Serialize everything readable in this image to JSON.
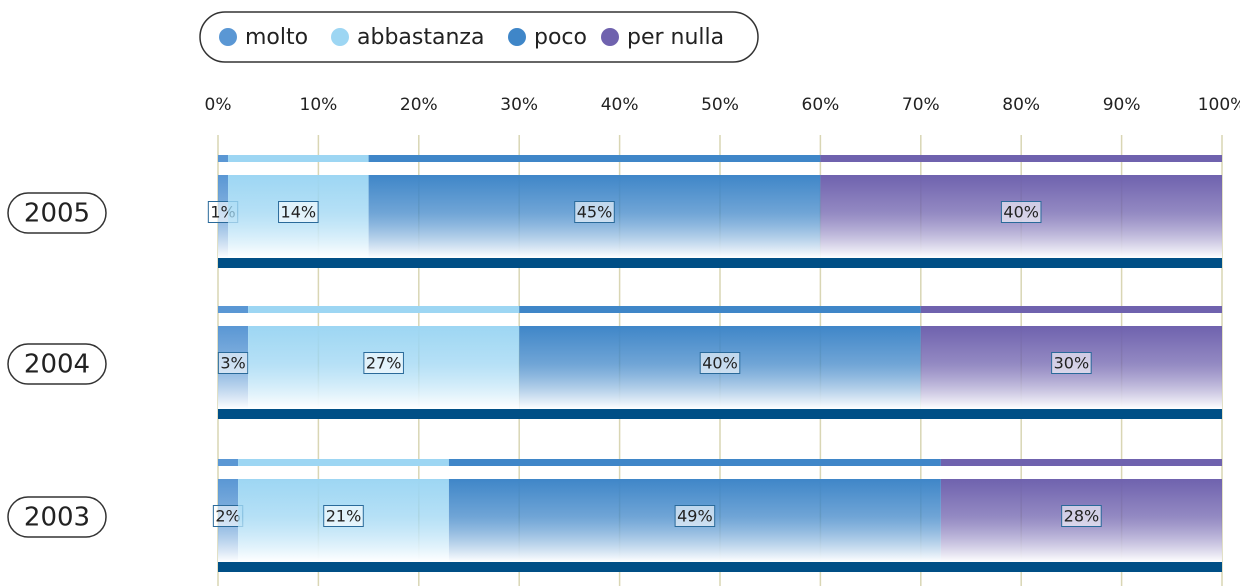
{
  "chart_data": {
    "type": "stacked-bar-horizontal",
    "categories": [
      "2005",
      "2004",
      "2003"
    ],
    "series": [
      {
        "name": "molto",
        "color": "#5a97d4",
        "values": [
          1,
          3,
          2
        ],
        "value_labels": [
          "1%",
          "3%",
          "2%"
        ]
      },
      {
        "name": "abbastanza",
        "color": "#9dd6f3",
        "values": [
          14,
          27,
          21
        ],
        "value_labels": [
          "14%",
          "27%",
          "21%"
        ]
      },
      {
        "name": "poco",
        "color": "#3f86c8",
        "values": [
          45,
          40,
          49
        ],
        "value_labels": [
          "45%",
          "40%",
          "49%"
        ]
      },
      {
        "name": "per nulla",
        "color": "#6f62ae",
        "values": [
          40,
          30,
          28
        ],
        "value_labels": [
          "40%",
          "30%",
          "28%"
        ]
      }
    ],
    "xlim": [
      0,
      100
    ],
    "xticks": [
      {
        "value": 0,
        "label": "0%"
      },
      {
        "value": 10,
        "label": "10%"
      },
      {
        "value": 20,
        "label": "20%"
      },
      {
        "value": 30,
        "label": "30%"
      },
      {
        "value": 40,
        "label": "40%"
      },
      {
        "value": 50,
        "label": "50%"
      },
      {
        "value": 60,
        "label": "60%"
      },
      {
        "value": 70,
        "label": "70%"
      },
      {
        "value": 80,
        "label": "80%"
      },
      {
        "value": 90,
        "label": "90%"
      },
      {
        "value": 100,
        "label": "100%"
      }
    ],
    "grid": true,
    "legend": "top"
  }
}
